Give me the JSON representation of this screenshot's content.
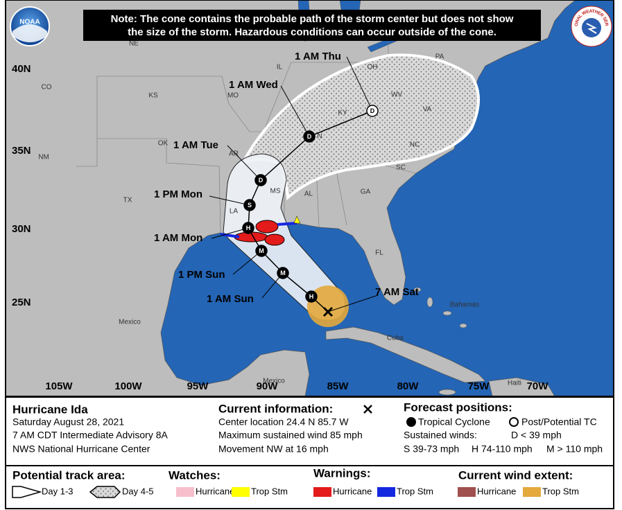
{
  "header": {
    "note": [
      "Note: The cone contains the probable path of the storm center but does not show",
      "the size of the storm. Hazardous conditions can occur outside of the cone."
    ],
    "noaa_logo": "NOAA",
    "nws_logo": "NATIONAL WEATHER SERVICE"
  },
  "map": {
    "latitude_labels": [
      "40N",
      "35N",
      "30N",
      "25N"
    ],
    "longitude_labels": [
      "105W",
      "100W",
      "95W",
      "90W",
      "85W",
      "80W",
      "75W",
      "70W"
    ],
    "region_labels": [
      "NE",
      "IL",
      "OH",
      "PA",
      "CO",
      "KS",
      "MO",
      "KY",
      "WV",
      "VA",
      "OK",
      "N",
      "NM",
      "AR",
      "NC",
      "SC",
      "MS",
      "AL",
      "GA",
      "TX",
      "LA",
      "FL",
      "Mexico",
      "Bahamas",
      "Cuba",
      "Mexico",
      "Haiti"
    ],
    "forecast_track": [
      {
        "time": "7 AM Sat"
      },
      {
        "time": null,
        "marker": "H"
      },
      {
        "time": "1 AM Sun",
        "marker": "M"
      },
      {
        "time": "1 PM Sun",
        "marker": "M"
      },
      {
        "time": "1 AM Mon",
        "marker": "H"
      },
      {
        "time": "1 PM Mon",
        "marker": "S"
      },
      {
        "time": "1 AM Tue",
        "marker": "D"
      },
      {
        "time": "1 AM Wed",
        "marker": "D"
      },
      {
        "time": "1 AM Thu",
        "marker": "D"
      }
    ]
  },
  "info": {
    "storm": {
      "name": "Hurricane Ida",
      "lines": [
        "Saturday August 28, 2021",
        "7 AM CDT Intermediate Advisory 8A",
        "NWS National Hurricane Center"
      ]
    },
    "current": {
      "title": "Current information:",
      "lines": [
        "Center location 24.4 N 85.7 W",
        "Maximum sustained wind 85 mph",
        "Movement NW at 16 mph"
      ]
    },
    "forecast": {
      "title": "Forecast positions:",
      "tropical_cyclone": "Tropical Cyclone",
      "post_tc": "Post/Potential TC",
      "sustained_winds": "Sustained winds:",
      "d": "D < 39 mph",
      "s": "S 39-73 mph",
      "h": "H 74-110 mph",
      "m": "M > 110 mph"
    }
  },
  "legend": {
    "track": {
      "title": "Potential track area:",
      "day13": "Day 1-3",
      "day45": "Day 4-5"
    },
    "watches": {
      "title": "Watches:",
      "hurricane": "Hurricane",
      "trop_stm": "Trop Stm"
    },
    "warnings": {
      "title": "Warnings:",
      "hurricane": "Hurricane",
      "trop_stm": "Trop Stm"
    },
    "wind": {
      "title": "Current wind extent:",
      "hurricane": "Hurricane",
      "trop_stm": "Trop Stm"
    }
  }
}
